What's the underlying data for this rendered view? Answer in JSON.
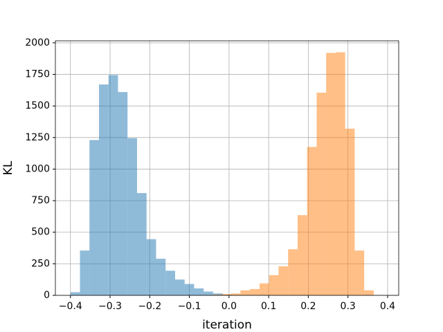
{
  "chart_data": {
    "type": "histogram",
    "xlabel": "iteration",
    "ylabel": "KL",
    "xlim": [
      -0.438,
      0.428
    ],
    "ylim": [
      0,
      2016
    ],
    "xticks": [
      {
        "value": -0.4,
        "label": "−0.4"
      },
      {
        "value": -0.3,
        "label": "−0.3"
      },
      {
        "value": -0.2,
        "label": "−0.2"
      },
      {
        "value": -0.1,
        "label": "−0.1"
      },
      {
        "value": 0,
        "label": "0.0"
      },
      {
        "value": 0.1,
        "label": "0.1"
      },
      {
        "value": 0.2,
        "label": "0.2"
      },
      {
        "value": 0.3,
        "label": "0.3"
      },
      {
        "value": 0.4,
        "label": "0.4"
      }
    ],
    "yticks": [
      0,
      250,
      500,
      750,
      1000,
      1250,
      1500,
      1750,
      2000
    ],
    "grid": true,
    "opacity": 0.5,
    "series": [
      {
        "color": "#1f77b4",
        "bins": [
          -0.4,
          -0.376,
          -0.352,
          -0.328,
          -0.304,
          -0.28,
          -0.256,
          -0.232,
          -0.208,
          -0.184,
          -0.16,
          -0.136,
          -0.112,
          -0.088,
          -0.064,
          -0.04,
          -0.016,
          0.008
        ],
        "values": [
          25,
          355,
          1230,
          1670,
          1745,
          1610,
          1245,
          810,
          445,
          290,
          195,
          125,
          90,
          55,
          30,
          15,
          5
        ]
      },
      {
        "color": "#ff7f0e",
        "bins": [
          -0.043,
          -0.019,
          0.005,
          0.029,
          0.053,
          0.077,
          0.101,
          0.125,
          0.149,
          0.173,
          0.197,
          0.221,
          0.245,
          0.269,
          0.293,
          0.317,
          0.341,
          0.365
        ],
        "values": [
          5,
          10,
          15,
          40,
          50,
          95,
          160,
          230,
          365,
          635,
          1175,
          1605,
          1920,
          1925,
          1320,
          355,
          40
        ]
      }
    ]
  }
}
